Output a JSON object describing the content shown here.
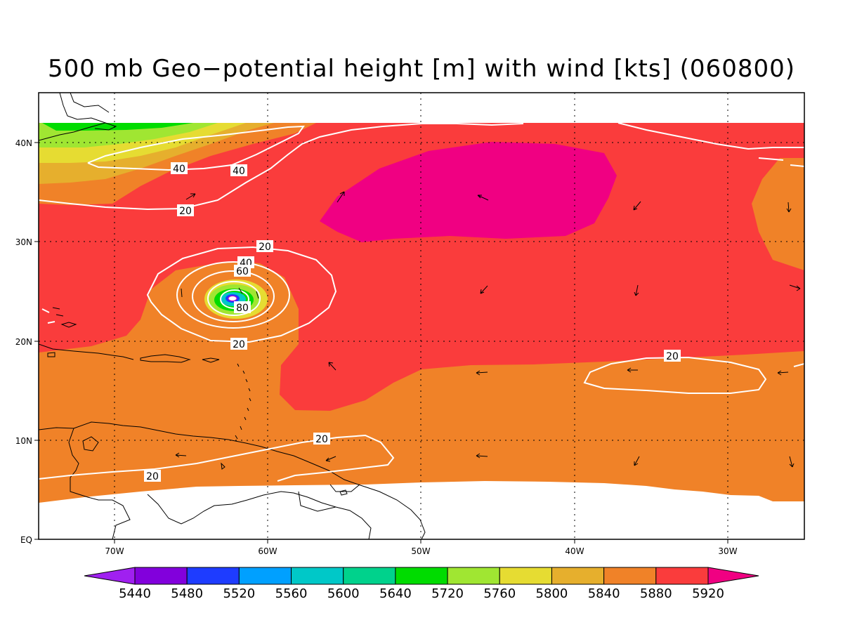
{
  "title": "500 mb Geo−potential height [m] with wind [kts] (060800)",
  "lat_labels": [
    "40N",
    "30N",
    "20N",
    "10N",
    "EQ"
  ],
  "lon_labels": [
    "70W",
    "60W",
    "50W",
    "40W",
    "30W"
  ],
  "colorbar": {
    "labels": [
      "5440",
      "5480",
      "5520",
      "5560",
      "5600",
      "5640",
      "5720",
      "5760",
      "5800",
      "5840",
      "5880",
      "5920"
    ],
    "colors": [
      "#a020f0",
      "#8200dc",
      "#1e3cff",
      "#00a0ff",
      "#00c8c8",
      "#00d28c",
      "#00dc00",
      "#a0e632",
      "#e6dc32",
      "#e6af2d",
      "#f08228",
      "#fa3c3c",
      "#f00082"
    ]
  },
  "contour_labels": [
    {
      "text": "40",
      "id": "wind-40-north-a"
    },
    {
      "text": "40",
      "id": "wind-40-north-b"
    },
    {
      "text": "20",
      "id": "wind-20-north"
    },
    {
      "text": "20",
      "id": "wind-20-storm-top"
    },
    {
      "text": "40",
      "id": "wind-40-storm"
    },
    {
      "text": "60",
      "id": "wind-60-storm"
    },
    {
      "text": "80",
      "id": "wind-80-storm"
    },
    {
      "text": "20",
      "id": "wind-20-storm-bottom"
    },
    {
      "text": "20",
      "id": "wind-20-east"
    },
    {
      "text": "20",
      "id": "wind-20-south"
    },
    {
      "text": "20",
      "id": "wind-20-southwest"
    }
  ]
}
